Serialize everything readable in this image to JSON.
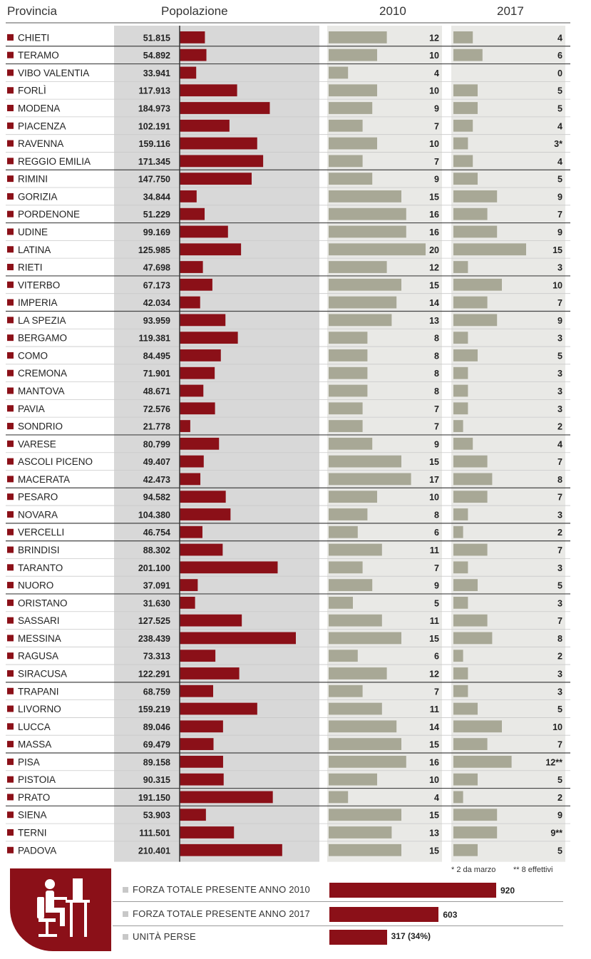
{
  "headers": {
    "provincia": "Provincia",
    "popolazione": "Popolazione",
    "y2010": "2010",
    "y2017": "2017"
  },
  "chart_data": {
    "type": "table",
    "columns": [
      "Provincia",
      "Popolazione",
      "2010",
      "2017"
    ],
    "series_colors": {
      "population": "#8b1018",
      "forces": "#a8a896",
      "population_bg": "#d8d8d8",
      "marker": "#8b1018"
    },
    "rows": [
      {
        "name": "CHIETI",
        "pop_label": "51.815",
        "pop": 51815,
        "v2010": "12",
        "v2017": "4"
      },
      {
        "name": "TERAMO",
        "pop_label": "54.892",
        "pop": 54892,
        "v2010": "10",
        "v2017": "6"
      },
      {
        "name": "VIBO VALENTIA",
        "pop_label": "33.941",
        "pop": 33941,
        "v2010": "4",
        "v2017": "0"
      },
      {
        "name": "FORLÌ",
        "pop_label": "117.913",
        "pop": 117913,
        "v2010": "10",
        "v2017": "5"
      },
      {
        "name": "MODENA",
        "pop_label": "184.973",
        "pop": 184973,
        "v2010": "9",
        "v2017": "5"
      },
      {
        "name": "PIACENZA",
        "pop_label": "102.191",
        "pop": 102191,
        "v2010": "7",
        "v2017": "4"
      },
      {
        "name": "RAVENNA",
        "pop_label": "159.116",
        "pop": 159116,
        "v2010": "10",
        "v2017": "3*"
      },
      {
        "name": "REGGIO EMILIA",
        "pop_label": "171.345",
        "pop": 171345,
        "v2010": "7",
        "v2017": "4"
      },
      {
        "name": "RIMINI",
        "pop_label": "147.750",
        "pop": 147750,
        "v2010": "9",
        "v2017": "5"
      },
      {
        "name": "GORIZIA",
        "pop_label": "34.844",
        "pop": 34844,
        "v2010": "15",
        "v2017": "9"
      },
      {
        "name": "PORDENONE",
        "pop_label": "51.229",
        "pop": 51229,
        "v2010": "16",
        "v2017": "7"
      },
      {
        "name": "UDINE",
        "pop_label": "99.169",
        "pop": 99169,
        "v2010": "16",
        "v2017": "9"
      },
      {
        "name": "LATINA",
        "pop_label": "125.985",
        "pop": 125985,
        "v2010": "20",
        "v2017": "15"
      },
      {
        "name": "RIETI",
        "pop_label": "47.698",
        "pop": 47698,
        "v2010": "12",
        "v2017": "3"
      },
      {
        "name": "VITERBO",
        "pop_label": "67.173",
        "pop": 67173,
        "v2010": "15",
        "v2017": "10"
      },
      {
        "name": "IMPERIA",
        "pop_label": "42.034",
        "pop": 42034,
        "v2010": "14",
        "v2017": "7"
      },
      {
        "name": "LA SPEZIA",
        "pop_label": "93.959",
        "pop": 93959,
        "v2010": "13",
        "v2017": "9"
      },
      {
        "name": "BERGAMO",
        "pop_label": "119.381",
        "pop": 119381,
        "v2010": "8",
        "v2017": "3"
      },
      {
        "name": "COMO",
        "pop_label": "84.495",
        "pop": 84495,
        "v2010": "8",
        "v2017": "5"
      },
      {
        "name": "CREMONA",
        "pop_label": "71.901",
        "pop": 71901,
        "v2010": "8",
        "v2017": "3"
      },
      {
        "name": "MANTOVA",
        "pop_label": "48.671",
        "pop": 48671,
        "v2010": "8",
        "v2017": "3"
      },
      {
        "name": "PAVIA",
        "pop_label": "72.576",
        "pop": 72576,
        "v2010": "7",
        "v2017": "3"
      },
      {
        "name": "SONDRIO",
        "pop_label": "21.778",
        "pop": 21778,
        "v2010": "7",
        "v2017": "2"
      },
      {
        "name": "VARESE",
        "pop_label": "80.799",
        "pop": 80799,
        "v2010": "9",
        "v2017": "4"
      },
      {
        "name": "ASCOLI PICENO",
        "pop_label": "49.407",
        "pop": 49407,
        "v2010": "15",
        "v2017": "7"
      },
      {
        "name": "MACERATA",
        "pop_label": "42.473",
        "pop": 42473,
        "v2010": "17",
        "v2017": "8"
      },
      {
        "name": "PESARO",
        "pop_label": "94.582",
        "pop": 94582,
        "v2010": "10",
        "v2017": "7"
      },
      {
        "name": "NOVARA",
        "pop_label": "104.380",
        "pop": 104380,
        "v2010": "8",
        "v2017": "3"
      },
      {
        "name": "VERCELLI",
        "pop_label": "46.754",
        "pop": 46754,
        "v2010": "6",
        "v2017": "2"
      },
      {
        "name": "BRINDISI",
        "pop_label": "88.302",
        "pop": 88302,
        "v2010": "11",
        "v2017": "7"
      },
      {
        "name": "TARANTO",
        "pop_label": "201.100",
        "pop": 201100,
        "v2010": "7",
        "v2017": "3"
      },
      {
        "name": "NUORO",
        "pop_label": "37.091",
        "pop": 37091,
        "v2010": "9",
        "v2017": "5"
      },
      {
        "name": "ORISTANO",
        "pop_label": "31.630",
        "pop": 31630,
        "v2010": "5",
        "v2017": "3"
      },
      {
        "name": "SASSARI",
        "pop_label": "127.525",
        "pop": 127525,
        "v2010": "11",
        "v2017": "7"
      },
      {
        "name": "MESSINA",
        "pop_label": "238.439",
        "pop": 238439,
        "v2010": "15",
        "v2017": "8"
      },
      {
        "name": "RAGUSA",
        "pop_label": "73.313",
        "pop": 73313,
        "v2010": "6",
        "v2017": "2"
      },
      {
        "name": "SIRACUSA",
        "pop_label": "122.291",
        "pop": 122291,
        "v2010": "12",
        "v2017": "3"
      },
      {
        "name": "TRAPANI",
        "pop_label": "68.759",
        "pop": 68759,
        "v2010": "7",
        "v2017": "3"
      },
      {
        "name": "LIVORNO",
        "pop_label": "159.219",
        "pop": 159219,
        "v2010": "11",
        "v2017": "5"
      },
      {
        "name": "LUCCA",
        "pop_label": "89.046",
        "pop": 89046,
        "v2010": "14",
        "v2017": "10"
      },
      {
        "name": "MASSA",
        "pop_label": "69.479",
        "pop": 69479,
        "v2010": "15",
        "v2017": "7"
      },
      {
        "name": "PISA",
        "pop_label": "89.158",
        "pop": 89158,
        "v2010": "16",
        "v2017": "12**"
      },
      {
        "name": "PISTOIA",
        "pop_label": "90.315",
        "pop": 90315,
        "v2010": "10",
        "v2017": "5"
      },
      {
        "name": "PRATO",
        "pop_label": "191.150",
        "pop": 191150,
        "v2010": "4",
        "v2017": "2"
      },
      {
        "name": "SIENA",
        "pop_label": "53.903",
        "pop": 53903,
        "v2010": "15",
        "v2017": "9"
      },
      {
        "name": "TERNI",
        "pop_label": "111.501",
        "pop": 111501,
        "v2010": "13",
        "v2017": "9**"
      },
      {
        "name": "PADOVA",
        "pop_label": "210.401",
        "pop": 210401,
        "v2010": "15",
        "v2017": "5"
      }
    ]
  },
  "notes": {
    "note1": "* 2 da marzo",
    "note2": "** 8 effettivi"
  },
  "summary": [
    {
      "label": "FORZA TOTALE PRESENTE ANNO 2010",
      "value": 920,
      "value_label": "920"
    },
    {
      "label": "FORZA TOTALE PRESENTE ANNO 2017",
      "value": 603,
      "value_label": "603"
    },
    {
      "label": "UNITÀ PERSE",
      "value": 317,
      "value_label": "317 (34%)"
    }
  ],
  "icon": "office-worker-at-desk-icon"
}
